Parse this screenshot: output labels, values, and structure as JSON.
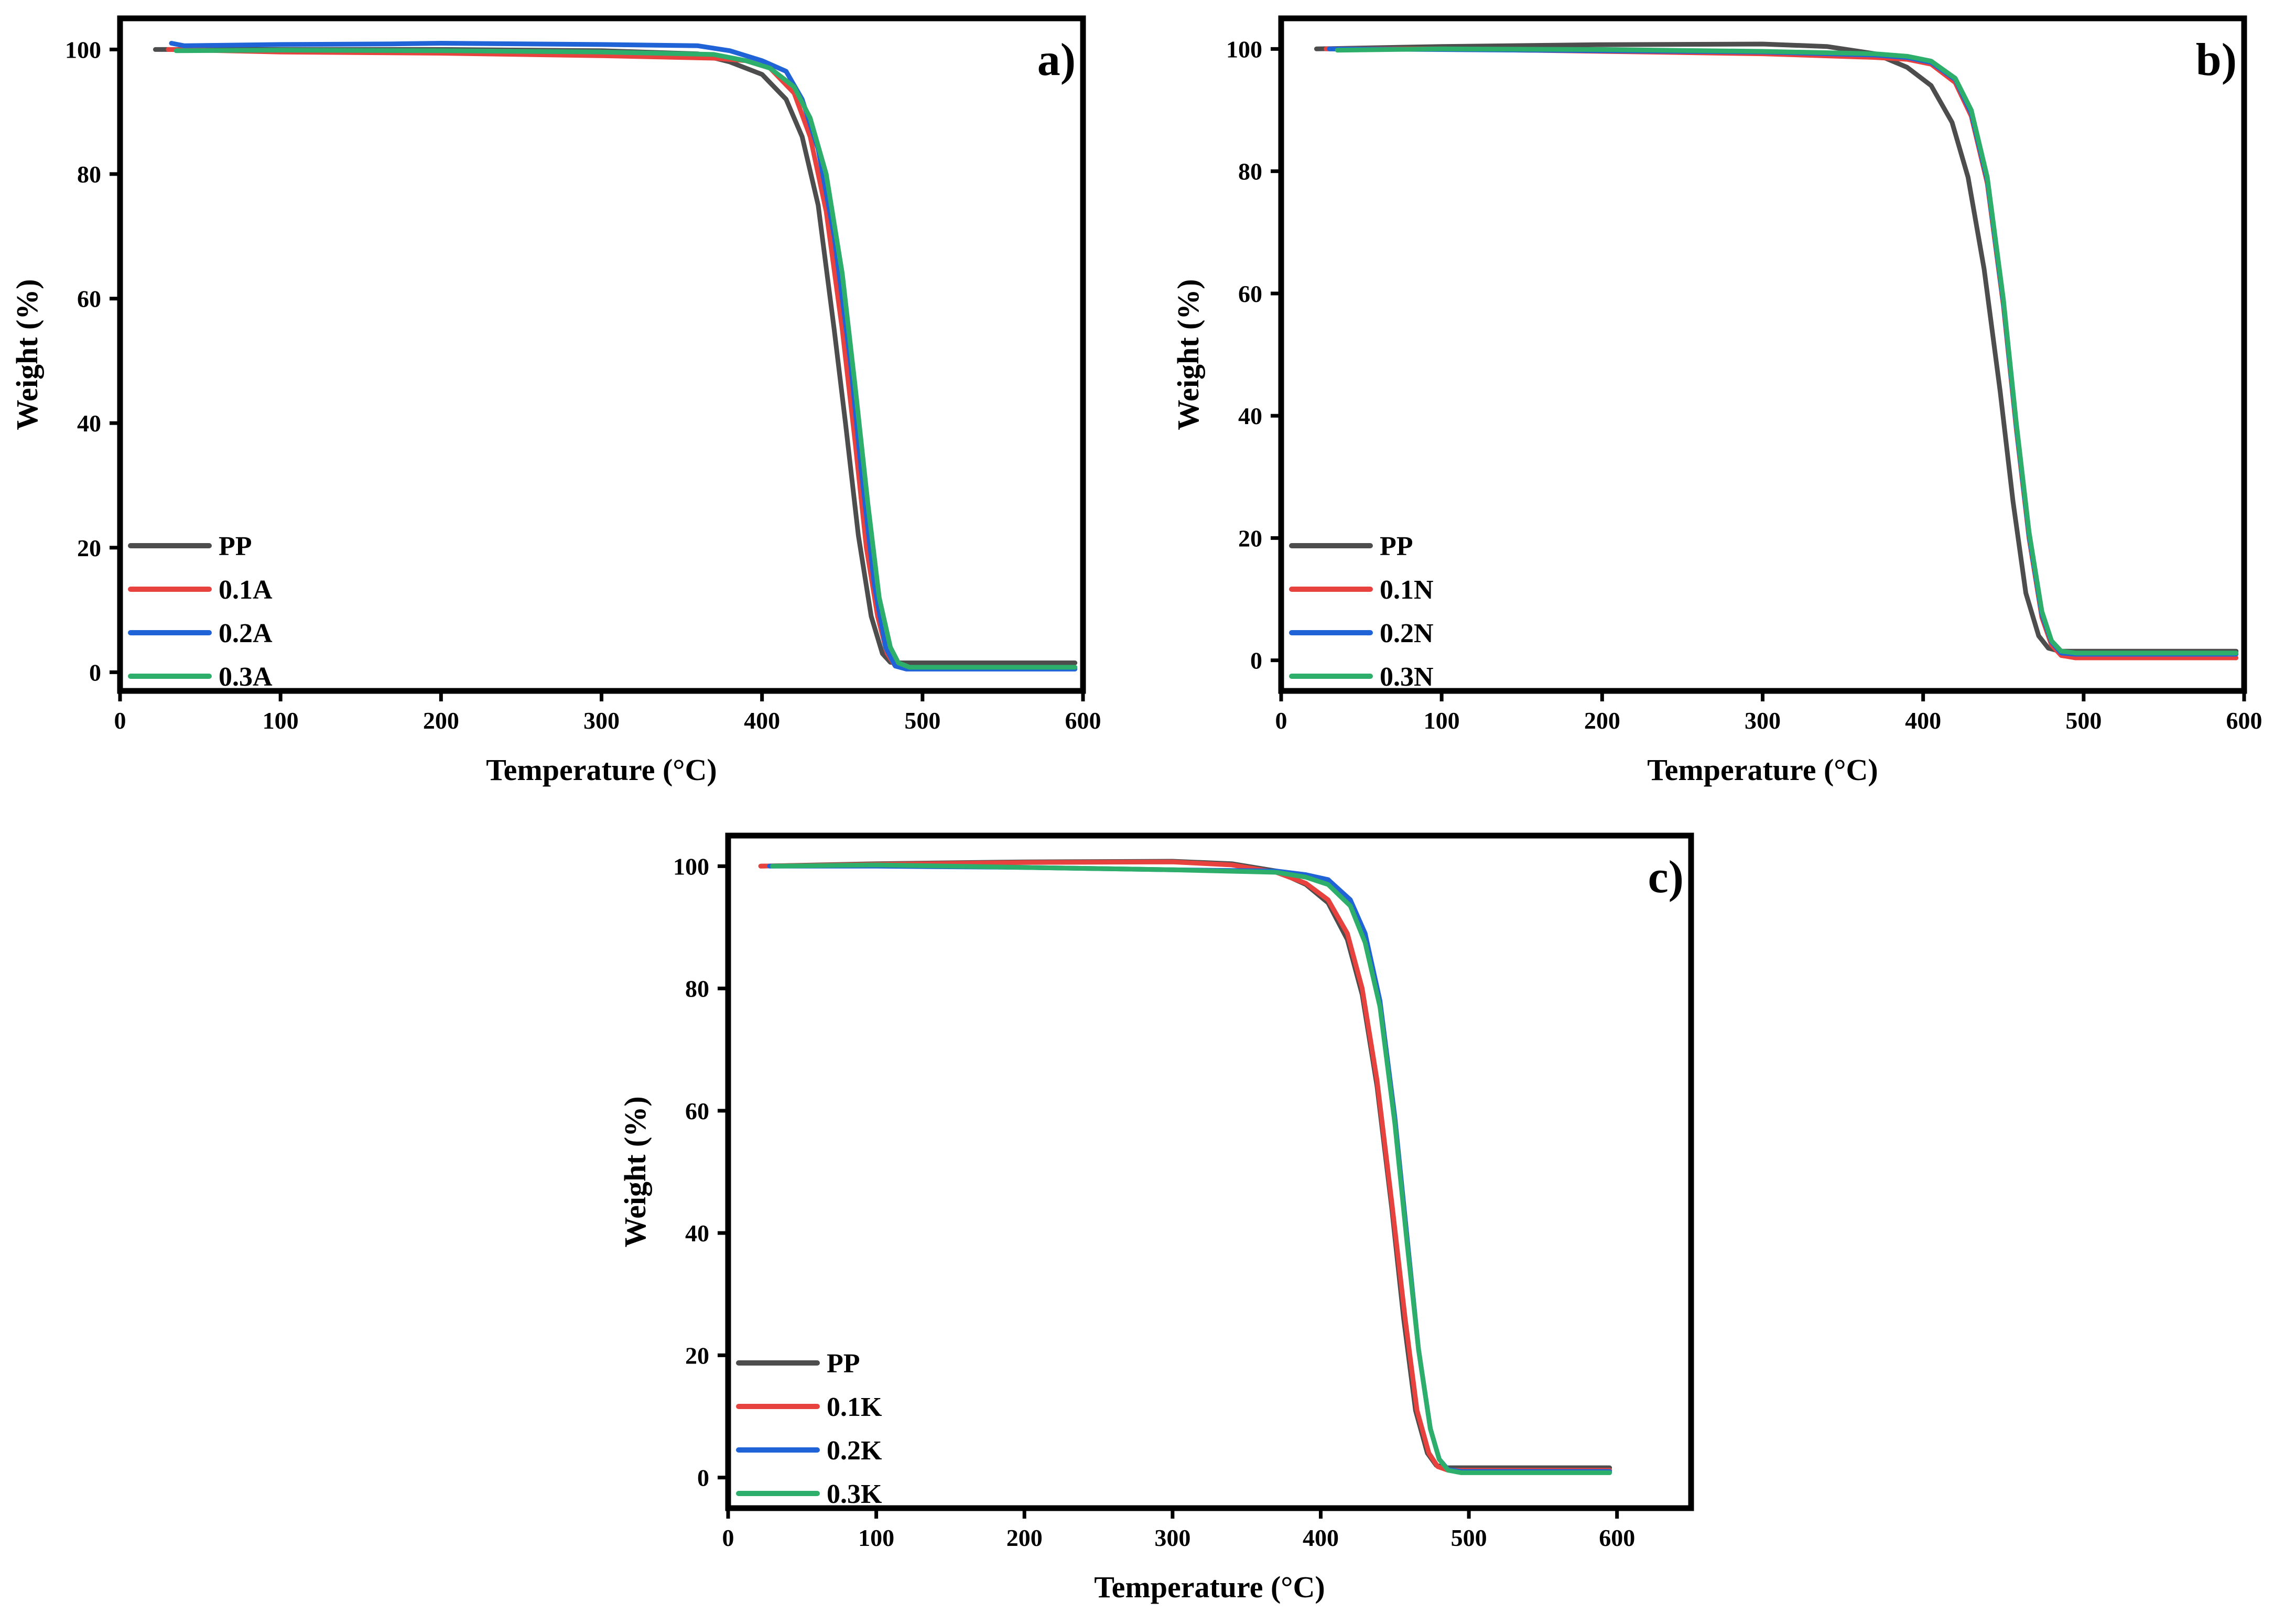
{
  "colors": {
    "PP": "#4d4d4d",
    "red": "#e8423f",
    "blue": "#1f63d6",
    "green": "#2eae6b"
  },
  "chart_data": [
    {
      "type": "line",
      "panel_label": "a)",
      "xlabel": "Temperature (°C)",
      "ylabel": "Weight (%)",
      "xlim": [
        0,
        600
      ],
      "ylim": [
        -3,
        105
      ],
      "xticks": [
        0,
        100,
        200,
        300,
        400,
        500,
        600
      ],
      "yticks": [
        0,
        20,
        40,
        60,
        80,
        100
      ],
      "legend_position": "bottom-left",
      "series": [
        {
          "name": "PP",
          "color": "#4d4d4d",
          "x": [
            22,
            100,
            200,
            300,
            360,
            380,
            400,
            415,
            425,
            435,
            445,
            452,
            460,
            468,
            475,
            480,
            485,
            500,
            595
          ],
          "y": [
            100,
            100,
            100,
            99.8,
            99.3,
            98,
            96,
            92,
            86,
            75,
            55,
            40,
            22,
            9,
            3,
            1.6,
            1.5,
            1.5,
            1.5
          ]
        },
        {
          "name": "0.1A",
          "color": "#e8423f",
          "x": [
            30,
            100,
            200,
            300,
            370,
            390,
            405,
            420,
            430,
            440,
            450,
            458,
            465,
            472,
            478,
            483,
            490,
            595
          ],
          "y": [
            100,
            99.6,
            99.4,
            99,
            98.6,
            98.2,
            97,
            93,
            86,
            74,
            55,
            37,
            20,
            9,
            3,
            1,
            0.6,
            0.6
          ]
        },
        {
          "name": "0.2A",
          "color": "#1f63d6",
          "x": [
            32,
            40,
            100,
            170,
            200,
            300,
            360,
            380,
            400,
            415,
            425,
            435,
            445,
            455,
            462,
            470,
            477,
            483,
            490,
            595
          ],
          "y": [
            101,
            100.6,
            100.8,
            100.9,
            101,
            100.8,
            100.6,
            99.8,
            98.2,
            96.5,
            92,
            84,
            70,
            50,
            32,
            14,
            4,
            1,
            0.5,
            0.5
          ]
        },
        {
          "name": "0.3A",
          "color": "#2eae6b",
          "x": [
            35,
            100,
            200,
            300,
            370,
            390,
            405,
            420,
            430,
            440,
            450,
            458,
            466,
            473,
            480,
            485,
            492,
            595
          ],
          "y": [
            99.8,
            99.9,
            99.8,
            99.6,
            99.2,
            98.2,
            97,
            94,
            89,
            80,
            64,
            46,
            27,
            12,
            4,
            1.5,
            0.8,
            0.8
          ]
        }
      ]
    },
    {
      "type": "line",
      "panel_label": "b)",
      "xlabel": "Temperature (°C)",
      "ylabel": "Weight (%)",
      "xlim": [
        0,
        600
      ],
      "ylim": [
        -5,
        105
      ],
      "xticks": [
        0,
        100,
        200,
        300,
        400,
        500,
        600
      ],
      "yticks": [
        0,
        20,
        40,
        60,
        80,
        100
      ],
      "legend_position": "bottom-left",
      "series": [
        {
          "name": "PP",
          "color": "#4d4d4d",
          "x": [
            22,
            100,
            200,
            300,
            340,
            370,
            390,
            405,
            418,
            428,
            438,
            448,
            456,
            464,
            472,
            478,
            485,
            500,
            595
          ],
          "y": [
            100,
            100.4,
            100.7,
            100.8,
            100.4,
            99.2,
            97,
            94,
            88,
            79,
            64,
            44,
            26,
            11,
            4,
            2,
            1.5,
            1.5,
            1.5
          ]
        },
        {
          "name": "0.1N",
          "color": "#e8423f",
          "x": [
            28,
            100,
            200,
            300,
            370,
            390,
            405,
            420,
            430,
            440,
            450,
            458,
            466,
            474,
            480,
            486,
            495,
            595
          ],
          "y": [
            100,
            100,
            99.6,
            99.2,
            98.6,
            98.3,
            97.5,
            94.5,
            89,
            78,
            58,
            38,
            20,
            7,
            2.5,
            0.8,
            0.4,
            0.4
          ]
        },
        {
          "name": "0.2N",
          "color": "#1f63d6",
          "x": [
            30,
            100,
            200,
            300,
            370,
            390,
            405,
            420,
            430,
            440,
            450,
            458,
            466,
            474,
            480,
            486,
            495,
            595
          ],
          "y": [
            100,
            99.9,
            99.7,
            99.5,
            99,
            98.6,
            97.8,
            95,
            89.5,
            78.5,
            58.5,
            38.5,
            20.5,
            7.5,
            3,
            1.2,
            1,
            1
          ]
        },
        {
          "name": "0.3N",
          "color": "#2eae6b",
          "x": [
            35,
            100,
            200,
            300,
            370,
            390,
            405,
            420,
            430,
            440,
            450,
            458,
            466,
            474,
            480,
            486,
            495,
            595
          ],
          "y": [
            99.8,
            100,
            99.9,
            99.6,
            99.2,
            98.8,
            98,
            95.2,
            90,
            79,
            59,
            39,
            21,
            8,
            3.2,
            1.5,
            1.2,
            1.2
          ]
        }
      ]
    },
    {
      "type": "line",
      "panel_label": "c)",
      "xlabel": "Temperature (°C)",
      "ylabel": "Weight (%)",
      "xlim": [
        0,
        650
      ],
      "ylim": [
        -5,
        105
      ],
      "xticks": [
        0,
        100,
        200,
        300,
        400,
        500,
        600
      ],
      "yticks": [
        0,
        20,
        40,
        60,
        80,
        100
      ],
      "legend_position": "bottom-left",
      "series": [
        {
          "name": "PP",
          "color": "#4d4d4d",
          "x": [
            22,
            100,
            200,
            300,
            340,
            370,
            390,
            405,
            418,
            428,
            438,
            448,
            456,
            464,
            472,
            478,
            485,
            500,
            595
          ],
          "y": [
            100,
            100.4,
            100.7,
            100.8,
            100.4,
            99.2,
            97,
            94,
            88,
            79,
            64,
            44,
            26,
            11,
            4,
            2,
            1.6,
            1.6,
            1.6
          ]
        },
        {
          "name": "0.1K",
          "color": "#e8423f",
          "x": [
            22,
            100,
            200,
            300,
            340,
            370,
            390,
            405,
            418,
            428,
            438,
            448,
            457,
            465,
            473,
            479,
            486,
            500,
            595
          ],
          "y": [
            100,
            100.3,
            100.6,
            100.7,
            100.2,
            99,
            97.2,
            94.5,
            89,
            80,
            65,
            45,
            26,
            11,
            4,
            1.8,
            1.2,
            1.2,
            1.2
          ]
        },
        {
          "name": "0.2K",
          "color": "#1f63d6",
          "x": [
            28,
            100,
            200,
            300,
            370,
            390,
            405,
            420,
            430,
            440,
            450,
            458,
            466,
            474,
            480,
            486,
            495,
            595
          ],
          "y": [
            100,
            100,
            99.8,
            99.4,
            99.2,
            98.6,
            97.8,
            94.5,
            89,
            78,
            59,
            40,
            21,
            8,
            3,
            1.3,
            1,
            1
          ]
        },
        {
          "name": "0.3K",
          "color": "#2eae6b",
          "x": [
            30,
            100,
            200,
            300,
            370,
            390,
            405,
            420,
            430,
            440,
            450,
            458,
            466,
            474,
            480,
            486,
            495,
            595
          ],
          "y": [
            100,
            100.2,
            99.8,
            99.4,
            99,
            98.2,
            97,
            93.5,
            87.5,
            77,
            58,
            39,
            21,
            8,
            3,
            1.2,
            0.8,
            0.8
          ]
        }
      ]
    }
  ]
}
